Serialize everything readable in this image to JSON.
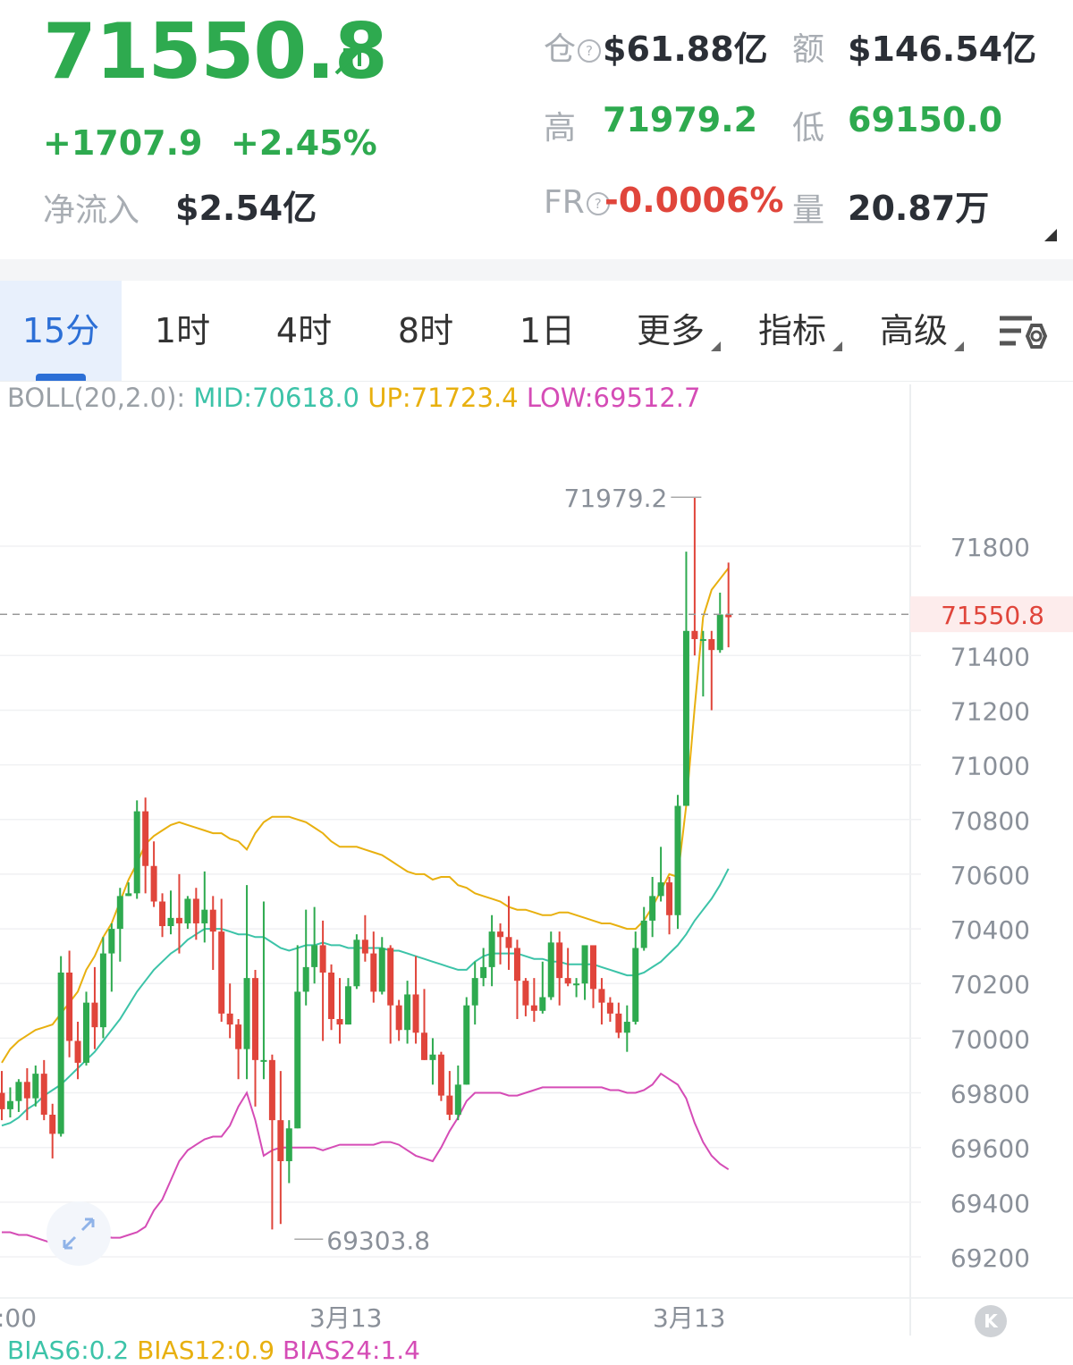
{
  "ticker": {
    "price": "71550.8",
    "change": "+1707.9",
    "change_pct": "+2.45%",
    "net_inflow_label": "净流入",
    "net_inflow_value": "$2.54亿",
    "oi_label": "仓",
    "oi_value": "$61.88亿",
    "amount_label": "额",
    "amount_value": "$146.54亿",
    "high_label": "高",
    "high_value": "71979.2",
    "low_label": "低",
    "low_value": "69150.0",
    "fr_label": "FR",
    "fr_value": "-0.0006%",
    "vol_label": "量",
    "vol_value": "20.87万",
    "up_color": "#2eaa4f",
    "down_color": "#e0453b"
  },
  "tabs": [
    {
      "label": "15分",
      "active": true
    },
    {
      "label": "1时"
    },
    {
      "label": "4时"
    },
    {
      "label": "8时"
    },
    {
      "label": "1日"
    },
    {
      "label": "更多"
    },
    {
      "label": "指标"
    },
    {
      "label": "高级"
    }
  ],
  "indicator": {
    "prefix": "BOLL(20,2.0):",
    "mid": "MID:70618.0",
    "up": "UP:71723.4",
    "low": "LOW:69512.7",
    "mid_color": "#3cc3a8",
    "up_color": "#e8b00f",
    "low_color": "#d54cb6"
  },
  "bias": {
    "b6": "BIAS6:0.2",
    "b12": "BIAS12:0.9",
    "b24": "BIAS24:1.4"
  },
  "chart_data": {
    "type": "candlestick",
    "ylim": [
      69100,
      72050
    ],
    "y_ticks": [
      71800,
      71400,
      71200,
      71000,
      70800,
      70600,
      70400,
      70200,
      70000,
      69800,
      69600,
      69400,
      69200
    ],
    "x_tick_labels": [
      ":00",
      "3月13",
      "3月13"
    ],
    "last_price_label": "71550.8",
    "annotations": [
      {
        "text": "71979.2",
        "value": 71979.2
      },
      {
        "text": "69303.8",
        "value": 69303.8
      }
    ],
    "candles": [
      [
        69800,
        69740,
        69880,
        69700
      ],
      [
        69740,
        69770,
        69820,
        69710
      ],
      [
        69770,
        69840,
        69850,
        69730
      ],
      [
        69840,
        69780,
        69890,
        69700
      ],
      [
        69780,
        69870,
        69900,
        69750
      ],
      [
        69870,
        69720,
        69920,
        69700
      ],
      [
        69720,
        69650,
        69760,
        69560
      ],
      [
        69650,
        70240,
        70300,
        69640
      ],
      [
        70240,
        69990,
        70320,
        69930
      ],
      [
        69990,
        69910,
        70060,
        69850
      ],
      [
        69910,
        70130,
        70170,
        69900
      ],
      [
        70130,
        70040,
        70260,
        69960
      ],
      [
        70040,
        70310,
        70370,
        70000
      ],
      [
        70310,
        70400,
        70420,
        70170
      ],
      [
        70400,
        70520,
        70550,
        70280
      ],
      [
        70520,
        70530,
        70570,
        70520
      ],
      [
        70530,
        70830,
        70870,
        70510
      ],
      [
        70830,
        70630,
        70880,
        70530
      ],
      [
        70630,
        70500,
        70720,
        70480
      ],
      [
        70500,
        70410,
        70530,
        70370
      ],
      [
        70410,
        70440,
        70540,
        70380
      ],
      [
        70440,
        70420,
        70600,
        70310
      ],
      [
        70420,
        70510,
        70520,
        70400
      ],
      [
        70510,
        70420,
        70550,
        70360
      ],
      [
        70420,
        70470,
        70610,
        70350
      ],
      [
        70470,
        70390,
        70520,
        70250
      ],
      [
        70390,
        70090,
        70510,
        70060
      ],
      [
        70090,
        70050,
        70200,
        70000
      ],
      [
        70050,
        69960,
        70070,
        69850
      ],
      [
        69960,
        70220,
        70560,
        69850
      ],
      [
        70220,
        69920,
        70250,
        69750
      ],
      [
        69920,
        69920,
        70500,
        69850
      ],
      [
        69920,
        69700,
        69940,
        69300
      ],
      [
        69700,
        69550,
        69880,
        69320
      ],
      [
        69550,
        69670,
        69700,
        69470
      ],
      [
        69670,
        70170,
        70340,
        69670
      ],
      [
        70170,
        70260,
        70470,
        70120
      ],
      [
        70260,
        70340,
        70480,
        70200
      ],
      [
        70340,
        70240,
        70430,
        69990
      ],
      [
        70240,
        70070,
        70270,
        70030
      ],
      [
        70070,
        70050,
        70220,
        69980
      ],
      [
        70050,
        70190,
        70220,
        70050
      ],
      [
        70190,
        70360,
        70380,
        70180
      ],
      [
        70360,
        70310,
        70450,
        70280
      ],
      [
        70310,
        70170,
        70390,
        70130
      ],
      [
        70170,
        70330,
        70370,
        70160
      ],
      [
        70330,
        70120,
        70340,
        69980
      ],
      [
        70120,
        70030,
        70140,
        69990
      ],
      [
        70030,
        70160,
        70210,
        69980
      ],
      [
        70160,
        70020,
        70300,
        69980
      ],
      [
        70020,
        69920,
        70180,
        69920
      ],
      [
        69920,
        69940,
        70000,
        69830
      ],
      [
        69940,
        69790,
        69950,
        69770
      ],
      [
        69790,
        69720,
        69880,
        69700
      ],
      [
        69720,
        69830,
        69900,
        69700
      ],
      [
        69830,
        70120,
        70150,
        69830
      ],
      [
        70120,
        70220,
        70280,
        70050
      ],
      [
        70220,
        70260,
        70330,
        70190
      ],
      [
        70260,
        70390,
        70450,
        70190
      ],
      [
        70390,
        70370,
        70420,
        70270
      ],
      [
        70370,
        70330,
        70520,
        70250
      ],
      [
        70330,
        70210,
        70360,
        70070
      ],
      [
        70210,
        70120,
        70220,
        70080
      ],
      [
        70120,
        70100,
        70220,
        70060
      ],
      [
        70100,
        70150,
        70280,
        70090
      ],
      [
        70150,
        70350,
        70390,
        70140
      ],
      [
        70350,
        70220,
        70390,
        70120
      ],
      [
        70220,
        70200,
        70330,
        70190
      ],
      [
        70200,
        70200,
        70220,
        70150
      ],
      [
        70200,
        70340,
        70330,
        70140
      ],
      [
        70340,
        70180,
        70260,
        70110
      ],
      [
        70180,
        70130,
        70220,
        70050
      ],
      [
        70130,
        70090,
        70150,
        70060
      ],
      [
        70090,
        70020,
        70130,
        70000
      ],
      [
        70020,
        70060,
        70120,
        69950
      ],
      [
        70060,
        70330,
        70390,
        70050
      ],
      [
        70330,
        70430,
        70480,
        70320
      ],
      [
        70430,
        70520,
        70590,
        70370
      ],
      [
        70520,
        70570,
        70700,
        70500
      ],
      [
        70570,
        70450,
        70590,
        70380
      ],
      [
        70450,
        70850,
        70890,
        70400
      ],
      [
        70850,
        71490,
        71780,
        70850
      ],
      [
        71490,
        71460,
        71980,
        71400
      ],
      [
        71460,
        71460,
        71490,
        71250
      ],
      [
        71460,
        71420,
        71490,
        71200
      ],
      [
        71420,
        71550,
        71630,
        71410
      ],
      [
        71550,
        71540,
        71740,
        71430
      ]
    ],
    "boll_mid": [
      69680,
      69690,
      69710,
      69740,
      69760,
      69790,
      69810,
      69830,
      69860,
      69890,
      69920,
      69950,
      69990,
      70030,
      70070,
      70120,
      70170,
      70210,
      70250,
      70280,
      70310,
      70330,
      70360,
      70380,
      70400,
      70400,
      70400,
      70390,
      70380,
      70380,
      70370,
      70370,
      70350,
      70330,
      70320,
      70330,
      70340,
      70340,
      70350,
      70340,
      70340,
      70330,
      70330,
      70330,
      70330,
      70330,
      70320,
      70320,
      70310,
      70300,
      70290,
      70280,
      70270,
      70260,
      70250,
      70250,
      70280,
      70300,
      70310,
      70310,
      70310,
      70310,
      70300,
      70290,
      70290,
      70280,
      70280,
      70270,
      70270,
      70270,
      70270,
      70260,
      70250,
      70240,
      70230,
      70230,
      70240,
      70260,
      70280,
      70310,
      70340,
      70380,
      70430,
      70470,
      70510,
      70560,
      70620
    ],
    "boll_up": [
      69910,
      69960,
      69990,
      70010,
      70030,
      70040,
      70050,
      70090,
      70130,
      70170,
      70250,
      70300,
      70370,
      70420,
      70500,
      70580,
      70640,
      70710,
      70740,
      70760,
      70780,
      70790,
      70780,
      70770,
      70760,
      70750,
      70750,
      70730,
      70720,
      70690,
      70750,
      70790,
      70810,
      70810,
      70810,
      70800,
      70790,
      70770,
      70750,
      70720,
      70700,
      70700,
      70700,
      70690,
      70680,
      70670,
      70650,
      70630,
      70610,
      70600,
      70600,
      70580,
      70590,
      70590,
      70560,
      70550,
      70530,
      70520,
      70510,
      70500,
      70480,
      70470,
      70470,
      70460,
      70450,
      70450,
      70460,
      70460,
      70450,
      70440,
      70430,
      70420,
      70420,
      70410,
      70400,
      70400,
      70430,
      70480,
      70540,
      70600,
      70590,
      70850,
      71210,
      71540,
      71640,
      71680,
      71720
    ],
    "boll_low": [
      69290,
      69290,
      69280,
      69280,
      69270,
      69260,
      69250,
      69270,
      69270,
      69280,
      69270,
      69260,
      69280,
      69270,
      69270,
      69280,
      69290,
      69310,
      69370,
      69410,
      69480,
      69550,
      69590,
      69610,
      69630,
      69640,
      69640,
      69680,
      69750,
      69800,
      69700,
      69570,
      69590,
      69600,
      69600,
      69600,
      69600,
      69600,
      69590,
      69600,
      69610,
      69610,
      69610,
      69610,
      69610,
      69620,
      69620,
      69610,
      69590,
      69570,
      69560,
      69550,
      69600,
      69660,
      69710,
      69770,
      69800,
      69800,
      69800,
      69800,
      69790,
      69790,
      69800,
      69810,
      69820,
      69820,
      69820,
      69820,
      69820,
      69820,
      69820,
      69820,
      69810,
      69810,
      69800,
      69800,
      69810,
      69830,
      69870,
      69850,
      69830,
      69780,
      69690,
      69620,
      69570,
      69540,
      69520
    ]
  }
}
